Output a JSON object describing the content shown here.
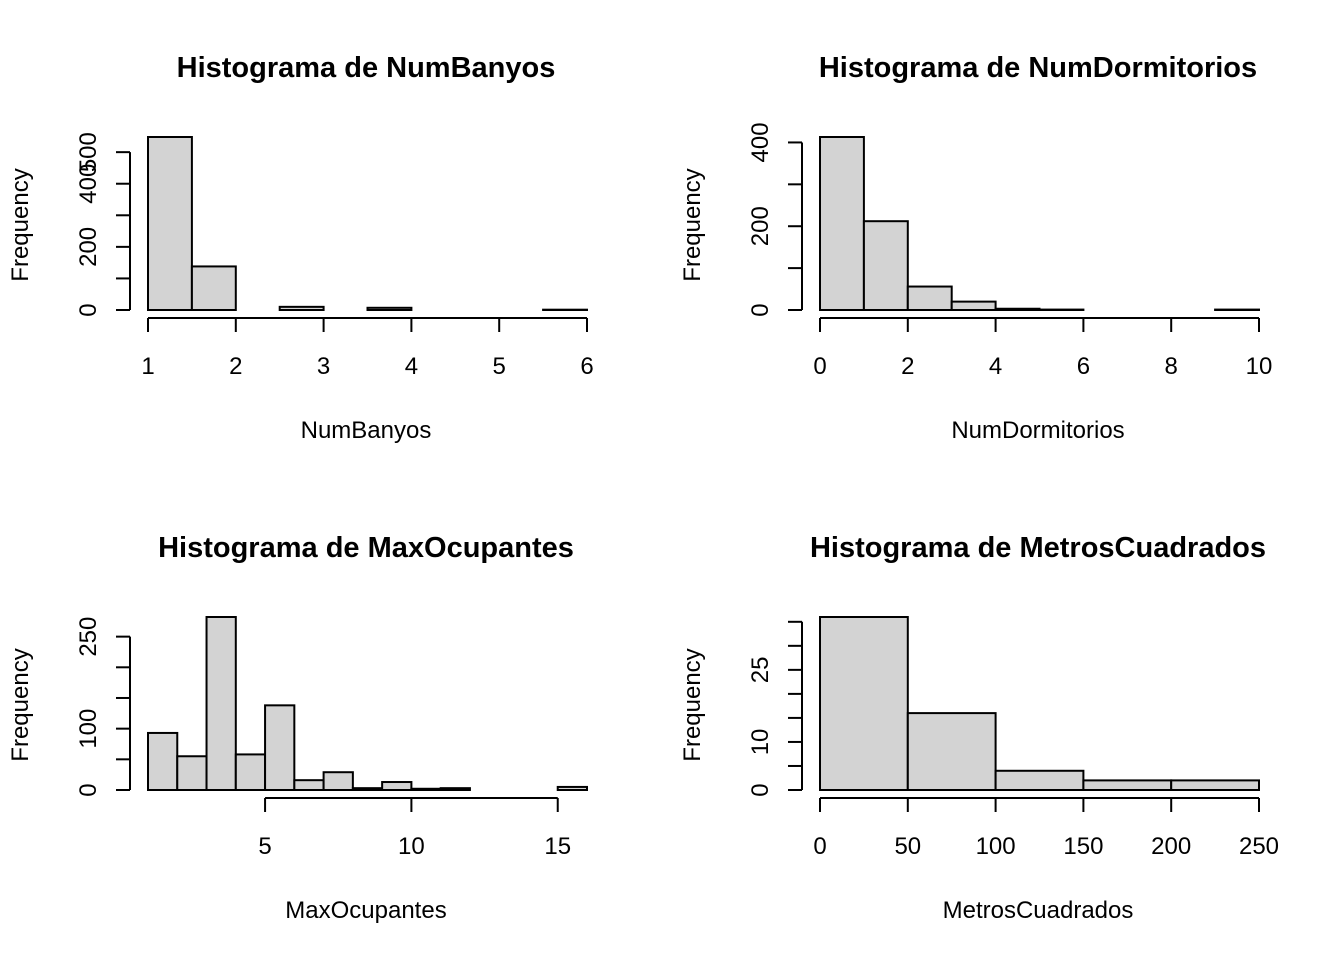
{
  "chart_data": [
    {
      "type": "bar",
      "title": "Histograma de NumBanyos",
      "xlabel": "NumBanyos",
      "ylabel": "Frequency",
      "bins": [
        [
          1,
          1.5
        ],
        [
          1.5,
          2
        ],
        [
          2,
          2.5
        ],
        [
          2.5,
          3
        ],
        [
          3,
          3.5
        ],
        [
          3.5,
          4
        ],
        [
          4,
          4.5
        ],
        [
          4.5,
          5
        ],
        [
          5,
          5.5
        ],
        [
          5.5,
          6
        ]
      ],
      "values": [
        548,
        138,
        0,
        10,
        0,
        7,
        0,
        0,
        0,
        1
      ],
      "xlim": [
        1,
        6
      ],
      "ylim": [
        0,
        548
      ],
      "xticks": [
        1,
        2,
        3,
        4,
        5,
        6
      ],
      "yticks": [
        0,
        100,
        200,
        300,
        400,
        500
      ],
      "ytick_labels": [
        "0",
        "",
        "200",
        "",
        "400",
        "500"
      ]
    },
    {
      "type": "bar",
      "title": "Histograma de NumDormitorios",
      "xlabel": "NumDormitorios",
      "ylabel": "Frequency",
      "bins": [
        [
          0,
          1
        ],
        [
          1,
          2
        ],
        [
          2,
          3
        ],
        [
          3,
          4
        ],
        [
          4,
          5
        ],
        [
          5,
          6
        ],
        [
          6,
          7
        ],
        [
          7,
          8
        ],
        [
          8,
          9
        ],
        [
          9,
          10
        ]
      ],
      "values": [
        413,
        212,
        56,
        20,
        3,
        1,
        0,
        0,
        0,
        1
      ],
      "xlim": [
        0,
        10
      ],
      "ylim": [
        0,
        413
      ],
      "xticks": [
        0,
        2,
        4,
        6,
        8,
        10
      ],
      "yticks": [
        0,
        100,
        200,
        300,
        400
      ],
      "ytick_labels": [
        "0",
        "",
        "200",
        "",
        "400"
      ]
    },
    {
      "type": "bar",
      "title": "Histograma de MaxOcupantes",
      "xlabel": "MaxOcupantes",
      "ylabel": "Frequency",
      "bins": [
        [
          1,
          2
        ],
        [
          2,
          3
        ],
        [
          3,
          4
        ],
        [
          4,
          5
        ],
        [
          5,
          6
        ],
        [
          6,
          7
        ],
        [
          7,
          8
        ],
        [
          8,
          9
        ],
        [
          9,
          10
        ],
        [
          10,
          11
        ],
        [
          11,
          12
        ],
        [
          12,
          13
        ],
        [
          13,
          14
        ],
        [
          14,
          15
        ],
        [
          15,
          16
        ]
      ],
      "values": [
        93,
        55,
        282,
        58,
        138,
        16,
        29,
        3,
        13,
        2,
        3,
        0,
        0,
        0,
        5
      ],
      "xlim": [
        1,
        16
      ],
      "ylim": [
        0,
        282
      ],
      "xticks": [
        5,
        10,
        15
      ],
      "yticks": [
        0,
        50,
        100,
        150,
        200,
        250
      ],
      "ytick_labels": [
        "0",
        "",
        "100",
        "",
        "",
        "250"
      ]
    },
    {
      "type": "bar",
      "title": "Histograma de MetrosCuadrados",
      "xlabel": "MetrosCuadrados",
      "ylabel": "Frequency",
      "bins": [
        [
          0,
          50
        ],
        [
          50,
          100
        ],
        [
          100,
          150
        ],
        [
          150,
          200
        ],
        [
          200,
          250
        ]
      ],
      "values": [
        36,
        16,
        4,
        2,
        2
      ],
      "xlim": [
        0,
        250
      ],
      "ylim": [
        0,
        36
      ],
      "xticks": [
        0,
        50,
        100,
        150,
        200,
        250
      ],
      "yticks": [
        0,
        5,
        10,
        15,
        20,
        25,
        30,
        35
      ],
      "ytick_labels": [
        "0",
        "",
        "10",
        "",
        "",
        "25",
        "",
        ""
      ]
    }
  ]
}
